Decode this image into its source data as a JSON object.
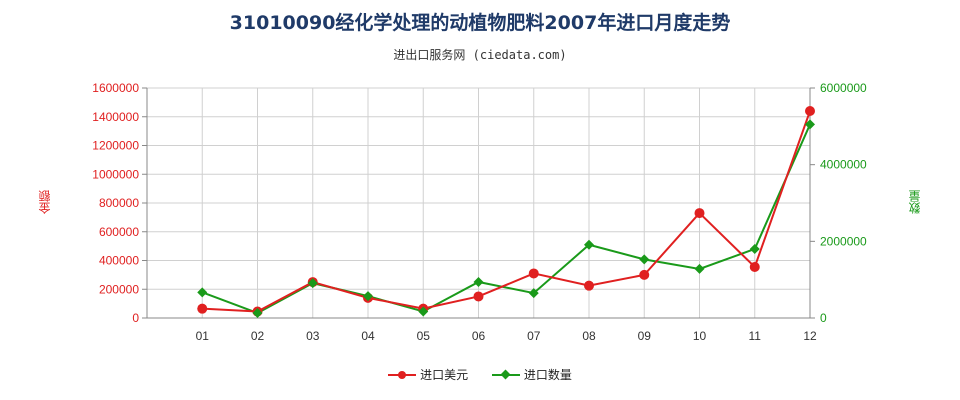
{
  "title": "31010090经化学处理的动植物肥料2007年进口月度走势",
  "subtitle": "进出口服务网 (ciedata.com)",
  "colors": {
    "series1": "#e02020",
    "series2": "#1a9a1a",
    "grid": "#d0d0d0"
  },
  "chart_data": {
    "type": "line",
    "categories": [
      "01",
      "02",
      "03",
      "04",
      "05",
      "06",
      "07",
      "08",
      "09",
      "10",
      "11",
      "12"
    ],
    "series": [
      {
        "name": "进口美元",
        "axis": "left",
        "values": [
          65000,
          45000,
          250000,
          140000,
          65000,
          150000,
          310000,
          225000,
          300000,
          730000,
          355000,
          1440000
        ]
      },
      {
        "name": "进口数量",
        "axis": "right",
        "values": [
          670000,
          130000,
          910000,
          570000,
          170000,
          940000,
          650000,
          1910000,
          1530000,
          1280000,
          1800000,
          5050000
        ]
      }
    ],
    "ylabel_left": "金额",
    "ylabel_right": "数量",
    "ylim_left": [
      0,
      1600000
    ],
    "ylim_right": [
      0,
      6000000
    ],
    "yticks_left": [
      "0",
      "200000",
      "400000",
      "600000",
      "800000",
      "1000000",
      "1200000",
      "1400000",
      "1600000"
    ],
    "yticks_right": [
      "0",
      "2000000",
      "4000000",
      "6000000"
    ],
    "grid": true,
    "legend_position": "bottom"
  }
}
